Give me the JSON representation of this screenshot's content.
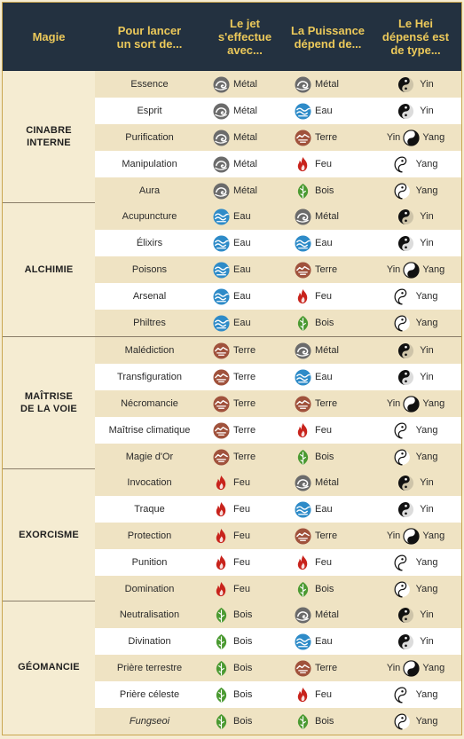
{
  "header": {
    "magie": "Magie",
    "sort": "Pour lancer\nun sort de...",
    "jet": "Le jet\ns'effectue\navec...",
    "puissance": "La Puissance\ndépend de...",
    "hei": "Le Hei\ndépensé est\nde type..."
  },
  "elements": {
    "metal": "Métal",
    "eau": "Eau",
    "terre": "Terre",
    "feu": "Feu",
    "bois": "Bois"
  },
  "hei_labels": {
    "yin": "Yin",
    "yang": "Yang"
  },
  "icons": {
    "metal": "metal-icon",
    "eau": "water-icon",
    "terre": "earth-icon",
    "feu": "fire-icon",
    "bois": "wood-icon",
    "yin": "yin-icon",
    "yang": "yang-icon",
    "yinyang": "yin-yang-icon"
  },
  "colors": {
    "header_bg": "#233140",
    "header_text": "#ecc95a",
    "row_alt": "#efe3c3",
    "row_white": "#ffffff",
    "border": "#c9a64f"
  },
  "groups": [
    {
      "name": "CINABRE\nINTERNE",
      "rows": [
        {
          "sort": "Essence",
          "jet": "metal",
          "puissance": "metal",
          "hei": "yin"
        },
        {
          "sort": "Esprit",
          "jet": "metal",
          "puissance": "eau",
          "hei": "yin"
        },
        {
          "sort": "Purification",
          "jet": "metal",
          "puissance": "terre",
          "hei": "both"
        },
        {
          "sort": "Manipulation",
          "jet": "metal",
          "puissance": "feu",
          "hei": "yang"
        },
        {
          "sort": "Aura",
          "jet": "metal",
          "puissance": "bois",
          "hei": "yang"
        }
      ]
    },
    {
      "name": "ALCHIMIE",
      "rows": [
        {
          "sort": "Acupuncture",
          "jet": "eau",
          "puissance": "metal",
          "hei": "yin"
        },
        {
          "sort": "Élixirs",
          "jet": "eau",
          "puissance": "eau",
          "hei": "yin"
        },
        {
          "sort": "Poisons",
          "jet": "eau",
          "puissance": "terre",
          "hei": "both"
        },
        {
          "sort": "Arsenal",
          "jet": "eau",
          "puissance": "feu",
          "hei": "yang"
        },
        {
          "sort": "Philtres",
          "jet": "eau",
          "puissance": "bois",
          "hei": "yang"
        }
      ]
    },
    {
      "name": "MAÎTRISE\nDE LA VOIE",
      "rows": [
        {
          "sort": "Malédiction",
          "jet": "terre",
          "puissance": "metal",
          "hei": "yin"
        },
        {
          "sort": "Transfiguration",
          "jet": "terre",
          "puissance": "eau",
          "hei": "yin"
        },
        {
          "sort": "Nécromancie",
          "jet": "terre",
          "puissance": "terre",
          "hei": "both"
        },
        {
          "sort": "Maîtrise climatique",
          "jet": "terre",
          "puissance": "feu",
          "hei": "yang"
        },
        {
          "sort": "Magie d'Or",
          "jet": "terre",
          "puissance": "bois",
          "hei": "yang"
        }
      ]
    },
    {
      "name": "EXORCISME",
      "rows": [
        {
          "sort": "Invocation",
          "jet": "feu",
          "puissance": "metal",
          "hei": "yin"
        },
        {
          "sort": "Traque",
          "jet": "feu",
          "puissance": "eau",
          "hei": "yin"
        },
        {
          "sort": "Protection",
          "jet": "feu",
          "puissance": "terre",
          "hei": "both"
        },
        {
          "sort": "Punition",
          "jet": "feu",
          "puissance": "feu",
          "hei": "yang"
        },
        {
          "sort": "Domination",
          "jet": "feu",
          "puissance": "bois",
          "hei": "yang"
        }
      ]
    },
    {
      "name": "GÉOMANCIE",
      "rows": [
        {
          "sort": "Neutralisation",
          "jet": "bois",
          "puissance": "metal",
          "hei": "yin"
        },
        {
          "sort": "Divination",
          "jet": "bois",
          "puissance": "eau",
          "hei": "yin"
        },
        {
          "sort": "Prière terrestre",
          "jet": "bois",
          "puissance": "terre",
          "hei": "both"
        },
        {
          "sort": "Prière céleste",
          "jet": "bois",
          "puissance": "feu",
          "hei": "yang"
        },
        {
          "sort": "Fungseoi",
          "jet": "bois",
          "puissance": "bois",
          "hei": "yang",
          "italic": true
        }
      ]
    }
  ]
}
